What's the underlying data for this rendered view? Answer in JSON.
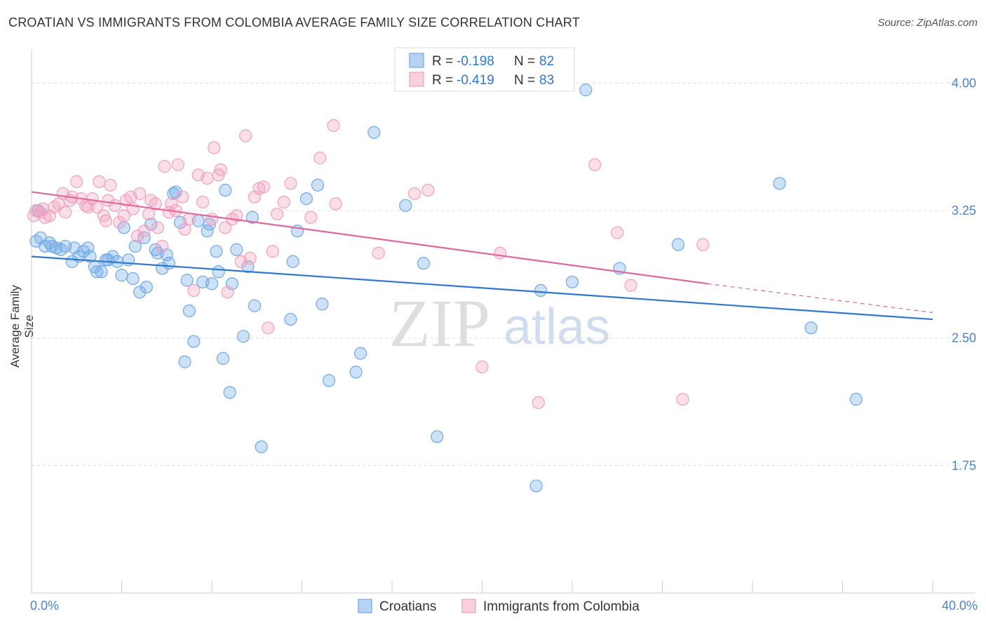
{
  "title": "CROATIAN VS IMMIGRANTS FROM COLOMBIA AVERAGE FAMILY SIZE CORRELATION CHART",
  "source": "Source: ZipAtlas.com",
  "watermark": {
    "zip": "ZIP",
    "atlas": "atlas"
  },
  "chart_data": {
    "type": "scatter",
    "ylabel": "Average Family Size",
    "x_range": [
      0,
      40
    ],
    "ylim": [
      1.0,
      4.2
    ],
    "x_tick_labels": [
      "0.0%",
      "40.0%"
    ],
    "y_ticks": [
      1.75,
      2.5,
      3.25,
      4.0
    ],
    "y_tick_labels": [
      "1.75",
      "2.50",
      "3.25",
      "4.00"
    ],
    "grid": true,
    "legend_position": "top-center",
    "series": [
      {
        "name": "Croatians",
        "color": "#6fa8e8",
        "line_color": "#2f78d0",
        "r_label": "R =",
        "r_value": "-0.198",
        "n_label": "N =",
        "n_value": "82",
        "trend": {
          "x0": 0,
          "y0": 2.98,
          "x1": 40,
          "y1": 2.61
        },
        "points": [
          [
            0.2,
            3.07
          ],
          [
            0.4,
            3.09
          ],
          [
            0.6,
            3.04
          ],
          [
            0.8,
            3.06
          ],
          [
            0.9,
            3.04
          ],
          [
            1.1,
            3.03
          ],
          [
            1.3,
            3.02
          ],
          [
            1.5,
            3.04
          ],
          [
            1.8,
            2.95
          ],
          [
            1.9,
            3.03
          ],
          [
            2.1,
            2.98
          ],
          [
            2.3,
            3.01
          ],
          [
            2.5,
            3.03
          ],
          [
            2.6,
            2.98
          ],
          [
            2.8,
            2.92
          ],
          [
            2.9,
            2.89
          ],
          [
            3.1,
            2.89
          ],
          [
            3.3,
            2.96
          ],
          [
            3.4,
            2.96
          ],
          [
            3.6,
            2.98
          ],
          [
            3.8,
            2.95
          ],
          [
            4.0,
            2.87
          ],
          [
            4.1,
            3.15
          ],
          [
            4.3,
            2.96
          ],
          [
            4.5,
            2.85
          ],
          [
            4.6,
            3.04
          ],
          [
            4.8,
            2.77
          ],
          [
            5.0,
            3.09
          ],
          [
            5.1,
            2.8
          ],
          [
            5.3,
            3.17
          ],
          [
            5.5,
            3.02
          ],
          [
            5.6,
            3.0
          ],
          [
            5.8,
            2.91
          ],
          [
            6.0,
            2.99
          ],
          [
            6.1,
            2.94
          ],
          [
            6.3,
            3.35
          ],
          [
            6.4,
            3.36
          ],
          [
            6.6,
            3.18
          ],
          [
            6.8,
            2.36
          ],
          [
            6.9,
            2.84
          ],
          [
            7.0,
            2.66
          ],
          [
            7.2,
            2.48
          ],
          [
            7.4,
            3.19
          ],
          [
            7.6,
            2.83
          ],
          [
            7.8,
            3.13
          ],
          [
            7.9,
            3.17
          ],
          [
            8.0,
            2.82
          ],
          [
            8.2,
            3.01
          ],
          [
            8.3,
            2.89
          ],
          [
            8.5,
            2.38
          ],
          [
            8.6,
            3.37
          ],
          [
            8.8,
            2.18
          ],
          [
            8.9,
            2.82
          ],
          [
            9.1,
            3.02
          ],
          [
            9.4,
            2.51
          ],
          [
            9.6,
            2.92
          ],
          [
            9.8,
            3.21
          ],
          [
            9.9,
            2.69
          ],
          [
            10.2,
            1.86
          ],
          [
            11.5,
            2.61
          ],
          [
            11.6,
            2.95
          ],
          [
            11.8,
            3.13
          ],
          [
            12.2,
            3.32
          ],
          [
            12.7,
            3.4
          ],
          [
            12.9,
            2.7
          ],
          [
            13.2,
            2.25
          ],
          [
            14.4,
            2.3
          ],
          [
            14.6,
            2.41
          ],
          [
            15.2,
            3.71
          ],
          [
            16.6,
            3.28
          ],
          [
            17.4,
            2.94
          ],
          [
            18.0,
            1.92
          ],
          [
            22.4,
            1.63
          ],
          [
            22.6,
            2.78
          ],
          [
            24.0,
            2.83
          ],
          [
            24.6,
            3.96
          ],
          [
            26.1,
            2.91
          ],
          [
            28.7,
            3.05
          ],
          [
            33.2,
            3.41
          ],
          [
            34.6,
            2.56
          ],
          [
            36.6,
            2.14
          ],
          [
            0.3,
            3.25
          ]
        ]
      },
      {
        "name": "Immigrants from Colombia",
        "color": "#f0a0bc",
        "line_color": "#e0679a",
        "r_label": "R =",
        "r_value": "-0.419",
        "n_label": "N =",
        "n_value": "83",
        "trend": {
          "x0": 0,
          "y0": 3.36,
          "x1": 30,
          "y1": 2.82
        },
        "trend_dashed": {
          "x0": 30,
          "y0": 2.82,
          "x1": 40,
          "y1": 2.65
        },
        "points": [
          [
            0.2,
            3.25
          ],
          [
            0.4,
            3.24
          ],
          [
            0.6,
            3.21
          ],
          [
            0.8,
            3.22
          ],
          [
            1.0,
            3.27
          ],
          [
            1.2,
            3.29
          ],
          [
            1.4,
            3.35
          ],
          [
            1.5,
            3.24
          ],
          [
            1.7,
            3.31
          ],
          [
            1.8,
            3.33
          ],
          [
            2.0,
            3.42
          ],
          [
            2.2,
            3.32
          ],
          [
            2.4,
            3.28
          ],
          [
            2.5,
            3.27
          ],
          [
            2.7,
            3.32
          ],
          [
            2.9,
            3.27
          ],
          [
            3.0,
            3.42
          ],
          [
            3.2,
            3.22
          ],
          [
            3.3,
            3.19
          ],
          [
            3.4,
            3.31
          ],
          [
            3.5,
            3.4
          ],
          [
            3.7,
            3.28
          ],
          [
            3.9,
            3.18
          ],
          [
            4.1,
            3.22
          ],
          [
            4.2,
            3.31
          ],
          [
            4.4,
            3.33
          ],
          [
            4.5,
            3.26
          ],
          [
            4.7,
            3.1
          ],
          [
            4.8,
            3.35
          ],
          [
            5.0,
            3.13
          ],
          [
            5.2,
            3.23
          ],
          [
            5.3,
            3.31
          ],
          [
            5.5,
            3.29
          ],
          [
            5.6,
            3.15
          ],
          [
            5.8,
            3.04
          ],
          [
            5.9,
            3.51
          ],
          [
            6.1,
            3.24
          ],
          [
            6.2,
            3.29
          ],
          [
            6.4,
            3.25
          ],
          [
            6.5,
            3.52
          ],
          [
            6.7,
            3.33
          ],
          [
            6.8,
            3.14
          ],
          [
            7.0,
            3.2
          ],
          [
            7.2,
            2.78
          ],
          [
            7.4,
            3.46
          ],
          [
            7.6,
            3.3
          ],
          [
            7.8,
            3.44
          ],
          [
            8.0,
            3.2
          ],
          [
            8.1,
            3.62
          ],
          [
            8.3,
            3.46
          ],
          [
            8.4,
            3.49
          ],
          [
            8.6,
            3.15
          ],
          [
            8.7,
            2.77
          ],
          [
            8.9,
            3.2
          ],
          [
            9.1,
            3.22
          ],
          [
            9.3,
            2.95
          ],
          [
            9.5,
            3.69
          ],
          [
            9.7,
            2.97
          ],
          [
            9.9,
            3.33
          ],
          [
            10.1,
            3.38
          ],
          [
            10.3,
            3.39
          ],
          [
            10.5,
            2.56
          ],
          [
            10.7,
            3.01
          ],
          [
            10.9,
            3.23
          ],
          [
            11.2,
            3.3
          ],
          [
            11.5,
            3.41
          ],
          [
            12.4,
            3.21
          ],
          [
            12.8,
            3.56
          ],
          [
            13.4,
            3.75
          ],
          [
            13.5,
            3.29
          ],
          [
            15.4,
            3.0
          ],
          [
            17.0,
            3.35
          ],
          [
            17.6,
            3.37
          ],
          [
            20.0,
            2.33
          ],
          [
            20.8,
            3.0
          ],
          [
            22.5,
            2.12
          ],
          [
            25.0,
            3.52
          ],
          [
            26.0,
            3.12
          ],
          [
            26.6,
            2.81
          ],
          [
            28.9,
            2.14
          ],
          [
            29.8,
            3.05
          ],
          [
            0.1,
            3.22
          ],
          [
            0.5,
            3.26
          ]
        ]
      }
    ]
  }
}
